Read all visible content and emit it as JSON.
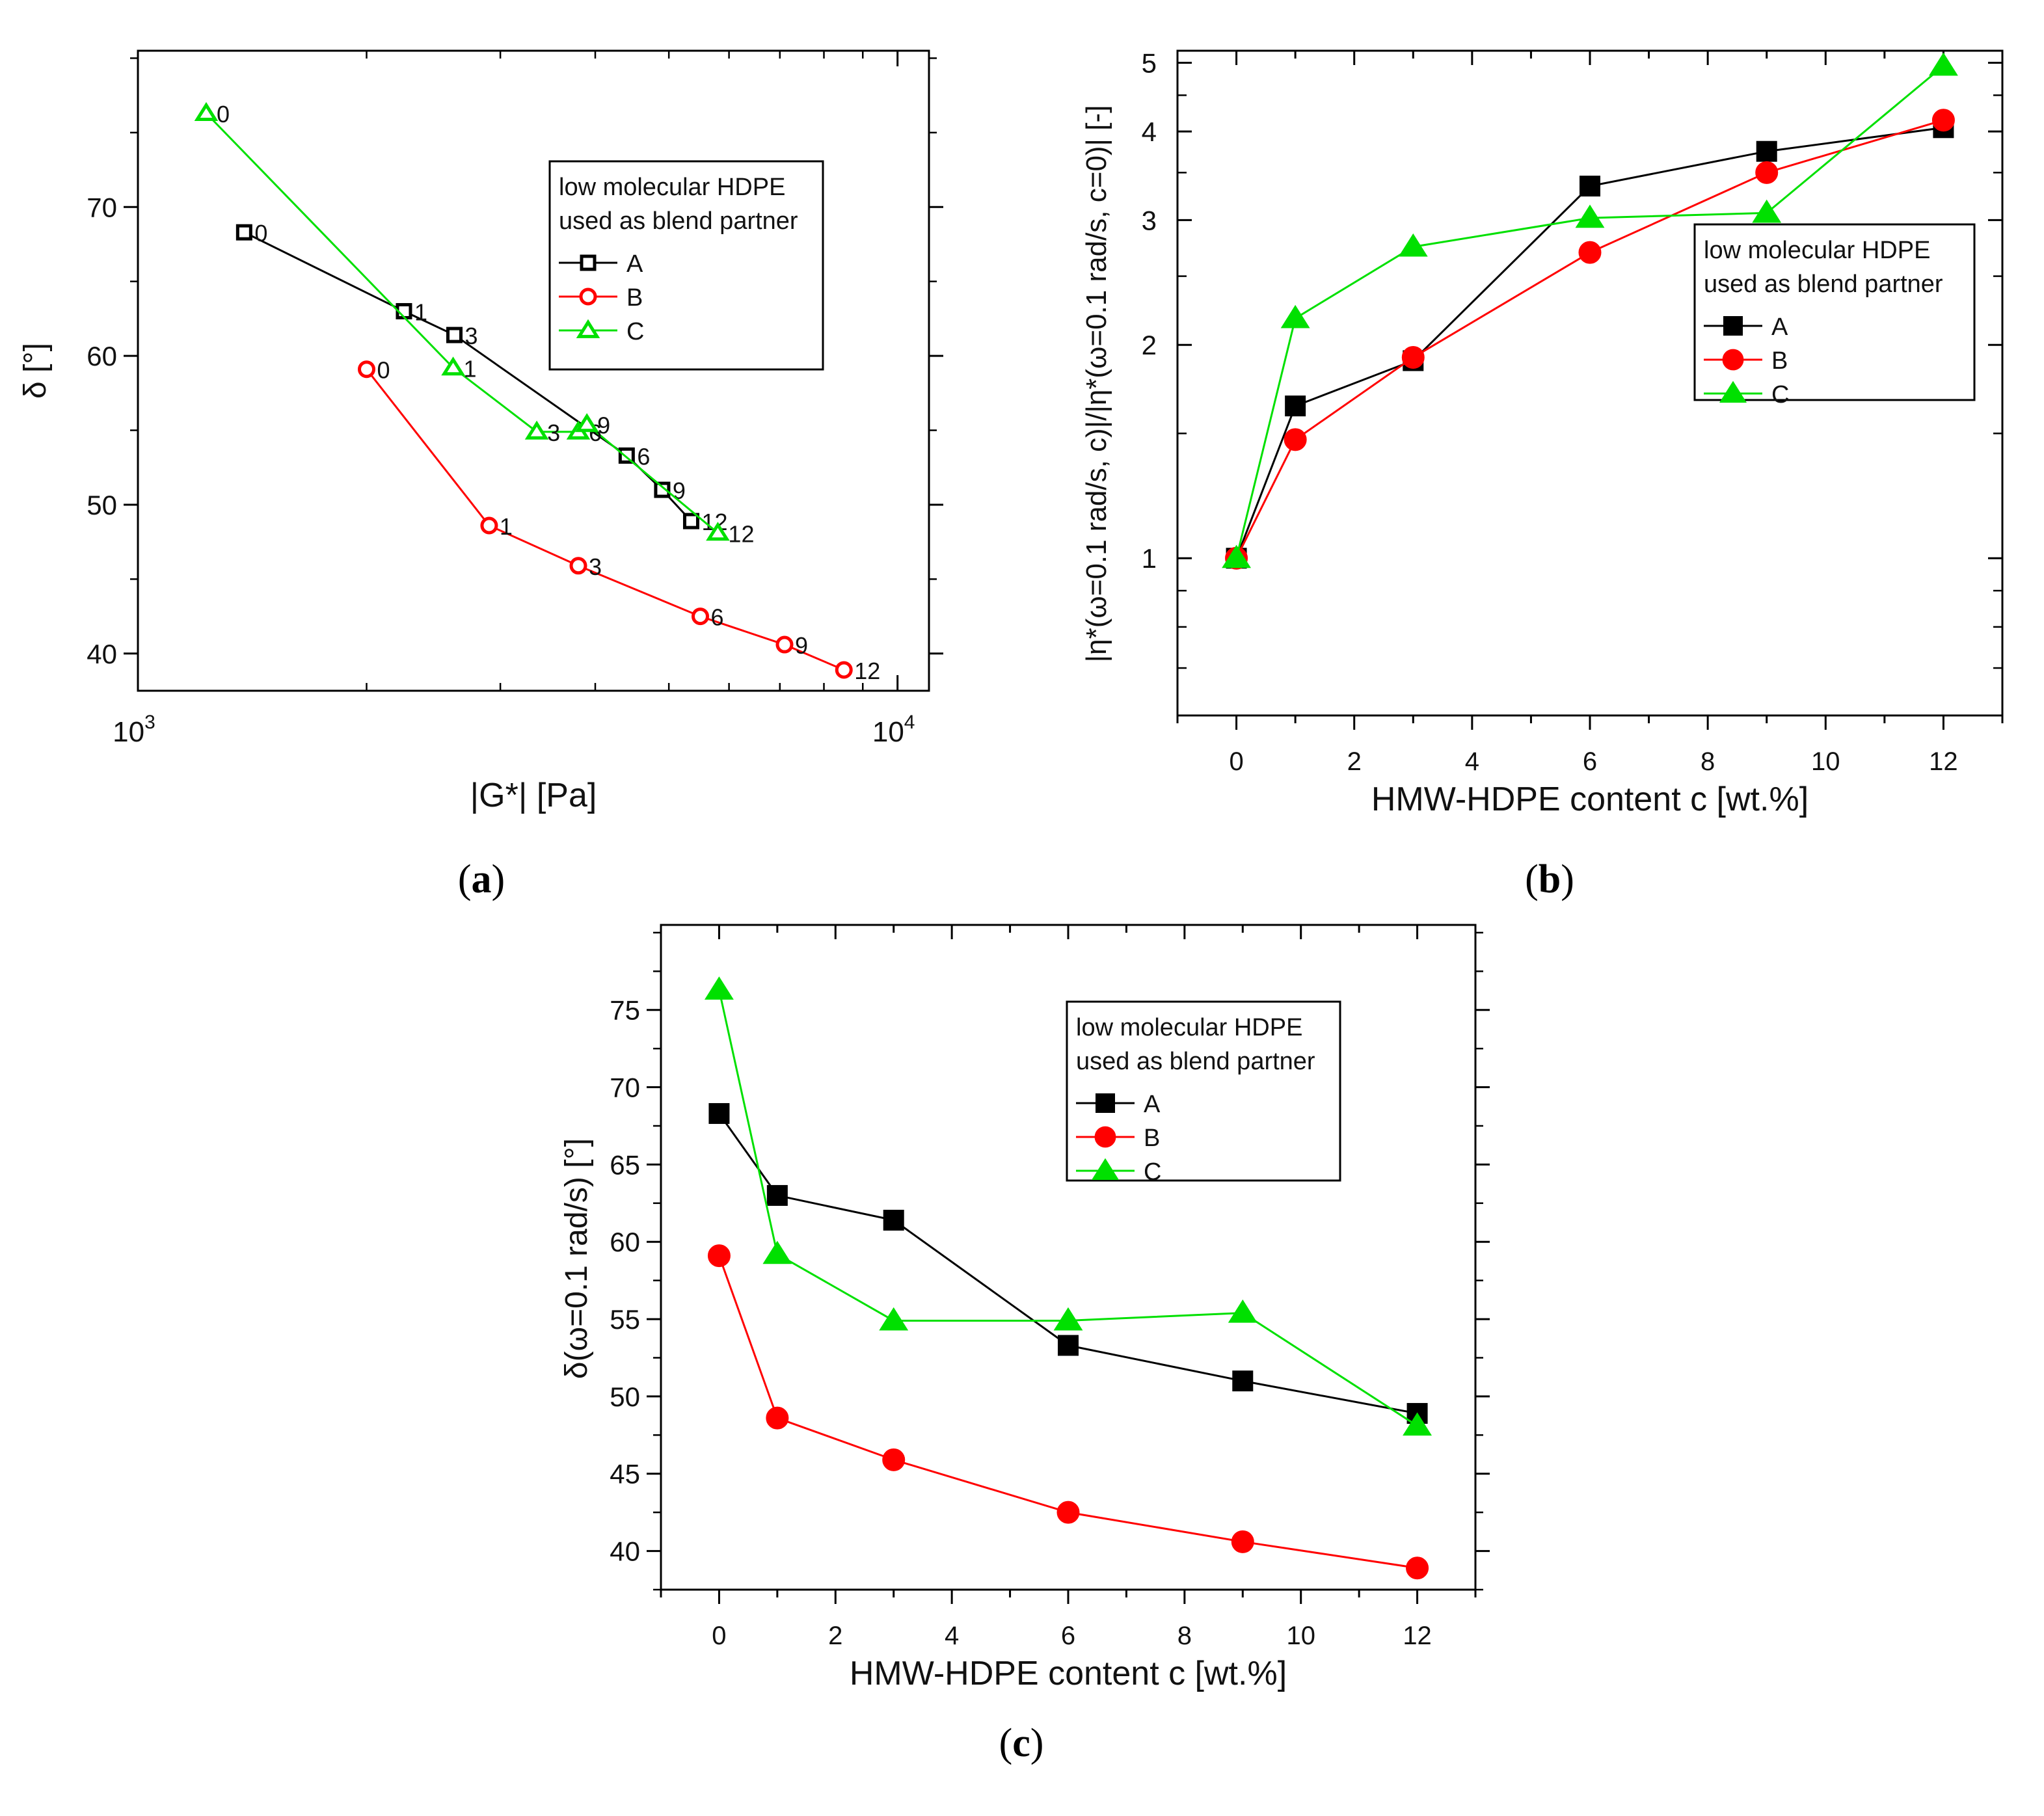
{
  "colors": {
    "A": "#000000",
    "B": "#ff0000",
    "C": "#00e000"
  },
  "chart_data": [
    {
      "id": "a",
      "caption_letter": "a",
      "type": "scatter",
      "xscale": "log",
      "xlabel": "|G*| [Pa]",
      "ylabel": "δ [°]",
      "xlim": [
        1000,
        11000
      ],
      "ylim": [
        37.5,
        80.5
      ],
      "xticks": [
        {
          "v": 1000,
          "label": "10",
          "exp": "3"
        },
        {
          "v": 10000,
          "label": "10",
          "exp": "4"
        }
      ],
      "yticks": [
        40,
        50,
        60,
        70
      ],
      "marker_style": "open",
      "legend": {
        "title1": "low molecular HDPE",
        "title2": "used as blend partner",
        "position": "top-right"
      },
      "series": [
        {
          "name": "A",
          "key": "A",
          "marker": "square",
          "x": [
            1380,
            2240,
            2610,
            4400,
            4900,
            5350
          ],
          "y": [
            68.3,
            63.0,
            61.4,
            53.3,
            51.0,
            48.9
          ],
          "labels": [
            "0",
            "1",
            "3",
            "6",
            "9",
            "12"
          ]
        },
        {
          "name": "B",
          "key": "B",
          "marker": "circle",
          "x": [
            2000,
            2900,
            3800,
            5500,
            7100,
            8500
          ],
          "y": [
            59.1,
            48.6,
            45.9,
            42.5,
            40.6,
            38.9
          ],
          "labels": [
            "0",
            "1",
            "3",
            "6",
            "9",
            "12"
          ]
        },
        {
          "name": "C",
          "key": "C",
          "marker": "triangle",
          "x": [
            1230,
            2600,
            3350,
            3800,
            3900,
            5800
          ],
          "y": [
            76.3,
            59.2,
            54.9,
            54.9,
            55.4,
            48.1
          ],
          "labels": [
            "0",
            "1",
            "3",
            "6",
            "9",
            "12"
          ]
        }
      ]
    },
    {
      "id": "b",
      "caption_letter": "b",
      "type": "line",
      "yscale": "log",
      "xlabel": "HMW-HDPE content c [wt.%]",
      "ylabel": "|η*(ω=0.1 rad/s, c)|/|η*(ω=0.1 rad/s, c=0)| [-]",
      "xlim": [
        -1,
        13
      ],
      "ylim": [
        0.6,
        5.2
      ],
      "xticks": [
        0,
        2,
        4,
        6,
        8,
        10,
        12
      ],
      "yticks": [
        1,
        2,
        3,
        4,
        5
      ],
      "marker_style": "filled",
      "legend": {
        "title1": "low molecular HDPE",
        "title2": "used as blend partner",
        "position": "center-right"
      },
      "series": [
        {
          "name": "A",
          "key": "A",
          "marker": "square",
          "x": [
            0,
            1,
            3,
            6,
            9,
            12
          ],
          "y": [
            1.0,
            1.64,
            1.9,
            3.35,
            3.75,
            4.05
          ]
        },
        {
          "name": "B",
          "key": "B",
          "marker": "circle",
          "x": [
            0,
            1,
            3,
            6,
            9,
            12
          ],
          "y": [
            1.0,
            1.47,
            1.92,
            2.7,
            3.5,
            4.15
          ]
        },
        {
          "name": "C",
          "key": "C",
          "marker": "triangle",
          "x": [
            0,
            1,
            3,
            6,
            9,
            12
          ],
          "y": [
            1.0,
            2.18,
            2.75,
            3.02,
            3.07,
            4.95
          ]
        }
      ]
    },
    {
      "id": "c",
      "caption_letter": "c",
      "type": "line",
      "xlabel": "HMW-HDPE content c [wt.%]",
      "ylabel": "δ(ω=0.1 rad/s) [°]",
      "xlim": [
        -1,
        13
      ],
      "ylim": [
        37.5,
        80.5
      ],
      "xticks": [
        0,
        2,
        4,
        6,
        8,
        10,
        12
      ],
      "yticks": [
        40,
        45,
        50,
        55,
        60,
        65,
        70,
        75
      ],
      "marker_style": "filled",
      "legend": {
        "title1": "low molecular HDPE",
        "title2": "used as blend partner",
        "position": "top-right"
      },
      "series": [
        {
          "name": "A",
          "key": "A",
          "marker": "square",
          "x": [
            0,
            1,
            3,
            6,
            9,
            12
          ],
          "y": [
            68.3,
            63.0,
            61.4,
            53.3,
            51.0,
            48.9
          ]
        },
        {
          "name": "B",
          "key": "B",
          "marker": "circle",
          "x": [
            0,
            1,
            3,
            6,
            9,
            12
          ],
          "y": [
            59.1,
            48.6,
            45.9,
            42.5,
            40.6,
            38.9
          ]
        },
        {
          "name": "C",
          "key": "C",
          "marker": "triangle",
          "x": [
            0,
            1,
            3,
            6,
            9,
            12
          ],
          "y": [
            76.3,
            59.2,
            54.9,
            54.9,
            55.4,
            48.1
          ]
        }
      ]
    }
  ]
}
